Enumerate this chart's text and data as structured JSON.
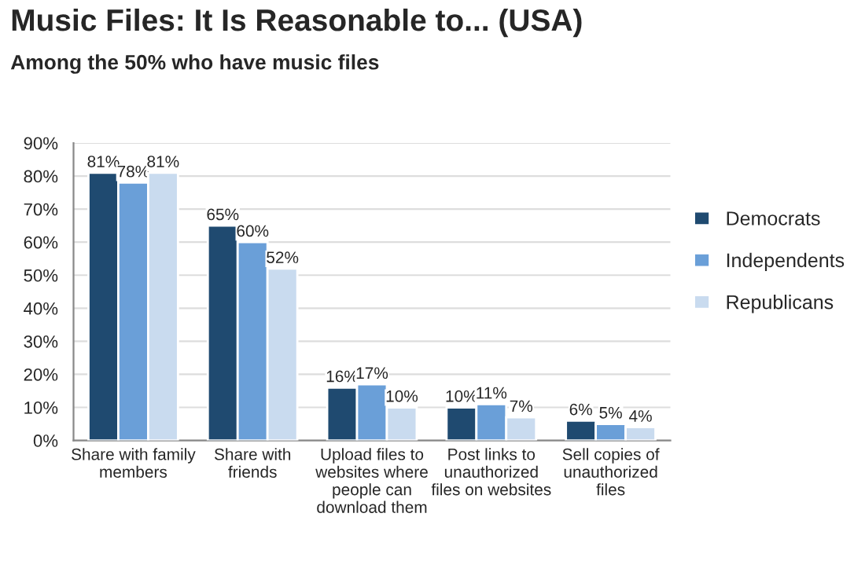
{
  "chart_data": {
    "type": "bar",
    "title": "Music Files: It Is Reasonable to... (USA)",
    "subtitle": "Among the 50% who have music files",
    "categories": [
      "Share with family\nmembers",
      "Share with\nfriends",
      "Upload files to\nwebsites where\npeople can\ndownload them",
      "Post links to\nunauthorized\nfiles on websites",
      "Sell copies of\nunauthorized\nfiles"
    ],
    "series": [
      {
        "name": "Democrats",
        "color": "#1f4a70",
        "values": [
          81,
          65,
          16,
          10,
          6
        ],
        "value_labels": [
          "81%",
          "65%",
          "16%",
          "10%",
          "6%"
        ]
      },
      {
        "name": "Independents",
        "color": "#6a9fd8",
        "values": [
          78,
          60,
          17,
          11,
          5
        ],
        "value_labels": [
          "78%",
          "60%",
          "17%",
          "11%",
          "5%"
        ]
      },
      {
        "name": "Republicans",
        "color": "#c9dbef",
        "values": [
          81,
          52,
          10,
          7,
          4
        ],
        "value_labels": [
          "81%",
          "52%",
          "10%",
          "7%",
          "4%"
        ]
      }
    ],
    "ylim": [
      0,
      90
    ],
    "yticks": [
      {
        "value": 0,
        "label": "0%"
      },
      {
        "value": 10,
        "label": "10%"
      },
      {
        "value": 20,
        "label": "20%"
      },
      {
        "value": 30,
        "label": "30%"
      },
      {
        "value": 40,
        "label": "40%"
      },
      {
        "value": 50,
        "label": "50%"
      },
      {
        "value": 60,
        "label": "60%"
      },
      {
        "value": 70,
        "label": "70%"
      },
      {
        "value": 80,
        "label": "80%"
      },
      {
        "value": 90,
        "label": "90%"
      }
    ],
    "grid": "y",
    "legend": "right"
  }
}
